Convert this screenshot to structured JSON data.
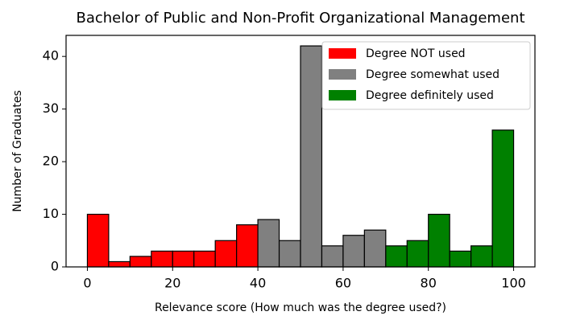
{
  "chart_data": {
    "type": "histogram",
    "title": "Bachelor of Public and Non-Profit Organizational Management",
    "xlabel": "Relevance score (How much was the degree used?)",
    "ylabel": "Number of Graduates",
    "series": [
      {
        "name": "Degree NOT used",
        "color": "#ff0000",
        "bins": [
          0,
          5,
          10,
          15,
          20,
          25,
          30,
          35,
          40
        ],
        "values": [
          10,
          1,
          2,
          3,
          3,
          3,
          5,
          8
        ]
      },
      {
        "name": "Degree somewhat used",
        "color": "#808080",
        "bins": [
          40,
          45,
          50,
          55,
          60,
          65,
          70
        ],
        "values": [
          9,
          5,
          42,
          4,
          6,
          7
        ]
      },
      {
        "name": "Degree definitely used",
        "color": "#008000",
        "bins": [
          70,
          75,
          80,
          85,
          90,
          95,
          100
        ],
        "values": [
          4,
          5,
          10,
          3,
          4,
          26
        ]
      }
    ],
    "xlim": [
      -5,
      105
    ],
    "ylim": [
      0,
      44
    ],
    "xticks": [
      0,
      20,
      40,
      60,
      80,
      100
    ],
    "yticks": [
      0,
      10,
      20,
      30,
      40
    ],
    "legend": "upper right"
  }
}
